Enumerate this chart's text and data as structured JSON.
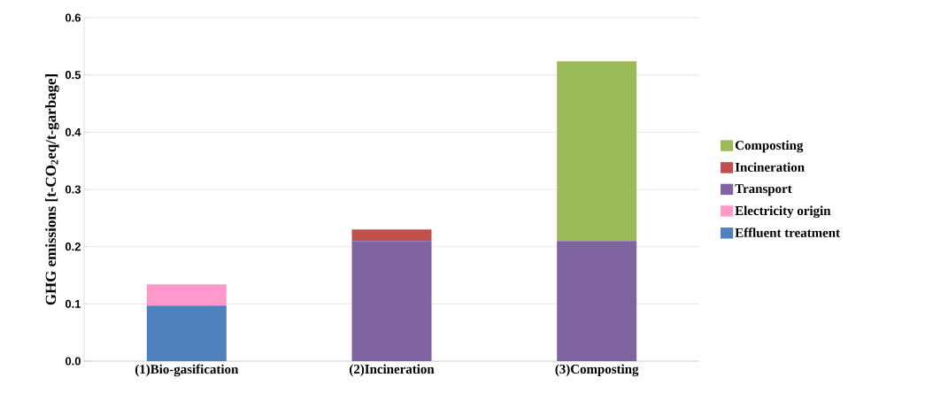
{
  "chart_data": {
    "type": "bar",
    "stacked": true,
    "ylabel": "GHG emissions [t-CO$_{2}$eq/t-garbage]",
    "categories": [
      "(1)Bio-gasification",
      "(2)Incineration",
      "(3)Composting"
    ],
    "series": [
      {
        "name": "Effluent treatment",
        "color": "#4f81bd",
        "values": [
          0.097,
          null,
          null
        ]
      },
      {
        "name": "Electricity origin",
        "color": "#ff99cc",
        "values": [
          0.037,
          null,
          null
        ]
      },
      {
        "name": "Transport",
        "color": "#8064a2",
        "values": [
          null,
          0.21,
          0.21
        ]
      },
      {
        "name": "Incineration",
        "color": "#c0504d",
        "values": [
          null,
          0.02,
          null
        ]
      },
      {
        "name": "Composting",
        "color": "#9bbb59",
        "values": [
          null,
          null,
          0.314
        ]
      }
    ],
    "ylim": [
      0,
      0.6
    ],
    "yticks": [
      {
        "value": 0,
        "label": "0.0"
      },
      0.1,
      0.2,
      0.3,
      0.4,
      0.5,
      0.6
    ],
    "grid": "y",
    "legend": "right"
  }
}
